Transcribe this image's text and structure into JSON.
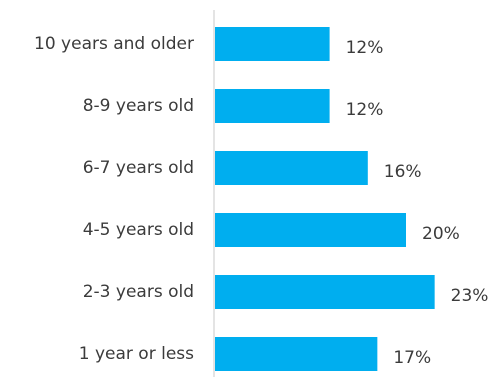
{
  "chart_data": {
    "type": "bar",
    "orientation": "horizontal",
    "categories": [
      "10 years and older",
      "8-9 years old",
      "6-7 years old",
      "4-5 years old",
      "2-3 years old",
      "1 year or less"
    ],
    "values": [
      12,
      12,
      16,
      20,
      23,
      17
    ],
    "value_labels": [
      "12%",
      "12%",
      "16%",
      "20%",
      "23%",
      "17%"
    ],
    "value_unit": "%",
    "bar_color": "#00aeef",
    "axis_color": "#c8c8c8",
    "grid": false,
    "legend": "none"
  }
}
